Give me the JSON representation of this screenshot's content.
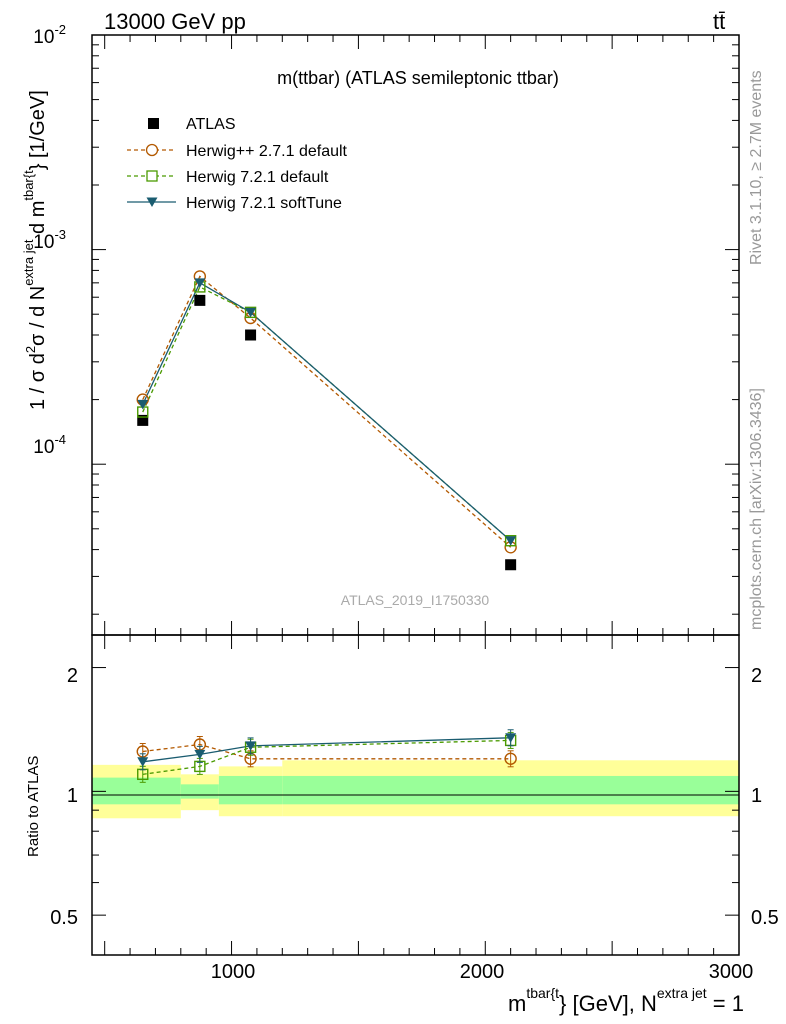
{
  "header": {
    "left": "13000 GeV pp",
    "right": "tt̄"
  },
  "side_text": {
    "rivet": "Rivet 3.1.10, ≥ 2.7M events",
    "mcplots": "mcplots.cern.ch [arXiv:1306.3436]"
  },
  "main_panel": {
    "title": "m(ttbar) (ATLAS semileptonic ttbar)",
    "ylabel_parts": [
      "1 / σ d",
      "2",
      "σ / d N",
      "extra jet",
      " d m",
      "tbar{t",
      "} [1/GeV]"
    ],
    "watermark": "ATLAS_2019_I1750330",
    "y_tick_labels": [
      {
        "base": "10",
        "exp": "-2"
      },
      {
        "base": "10",
        "exp": "-3"
      },
      {
        "base": "10",
        "exp": "-4"
      }
    ]
  },
  "ratio_panel": {
    "ylabel": "Ratio to ATLAS",
    "y_tick_labels": [
      "2",
      "1",
      "0.5"
    ]
  },
  "x_axis": {
    "tick_labels": [
      "1000",
      "2000",
      "3000"
    ],
    "label_parts": [
      "m",
      "tbar{t",
      "} [GeV], N",
      "extra jet",
      " = 1"
    ]
  },
  "legend": [
    {
      "label": "ATLAS"
    },
    {
      "label": "Herwig++ 2.7.1 default"
    },
    {
      "label": "Herwig 7.2.1 default"
    },
    {
      "label": "Herwig 7.2.1 softTune"
    }
  ],
  "chart_data": {
    "type": "scatter",
    "x_scale": "linear",
    "y_scale": "log",
    "xlim": [
      450,
      3000
    ],
    "ylim": [
      1.6e-05,
      0.01
    ],
    "ratio_ylim": [
      0.4,
      2.4
    ],
    "ratio_y_scale": "log",
    "bins": [
      [
        450,
        800
      ],
      [
        800,
        950
      ],
      [
        950,
        1200
      ],
      [
        1200,
        3000
      ]
    ],
    "x": [
      650,
      875,
      1075,
      2100
    ],
    "series": [
      {
        "name": "ATLAS",
        "color": "#000000",
        "marker": "filled-square",
        "values": [
          0.00016,
          0.00058,
          0.0004,
          3.4e-05
        ]
      },
      {
        "name": "Herwig++ 2.7.1 default",
        "color": "#b35900",
        "marker": "open-circle",
        "line": "dashed",
        "values": [
          0.0002,
          0.00075,
          0.00048,
          4.1e-05
        ],
        "ratio": [
          1.25,
          1.3,
          1.2,
          1.2
        ]
      },
      {
        "name": "Herwig 7.2.1 default",
        "color": "#4a9a00",
        "marker": "open-square",
        "line": "dashed",
        "values": [
          0.000175,
          0.00067,
          0.00051,
          4.4e-05
        ],
        "ratio": [
          1.1,
          1.15,
          1.28,
          1.33
        ]
      },
      {
        "name": "Herwig 7.2.1 softTune",
        "color": "#1a5c70",
        "marker": "filled-triangle-down",
        "line": "solid",
        "values": [
          0.00019,
          0.0007,
          0.00051,
          4.4e-05
        ],
        "ratio": [
          1.18,
          1.23,
          1.29,
          1.35
        ]
      }
    ],
    "uncertainty_bands": {
      "stat_color": "#99ff99",
      "total_color": "#ffff99",
      "stat": [
        [
          0.93,
          1.08
        ],
        [
          0.96,
          1.04
        ],
        [
          0.93,
          1.09
        ],
        [
          0.93,
          1.09
        ]
      ],
      "total": [
        [
          0.86,
          1.16
        ],
        [
          0.9,
          1.1
        ],
        [
          0.87,
          1.15
        ],
        [
          0.87,
          1.19
        ]
      ]
    }
  }
}
